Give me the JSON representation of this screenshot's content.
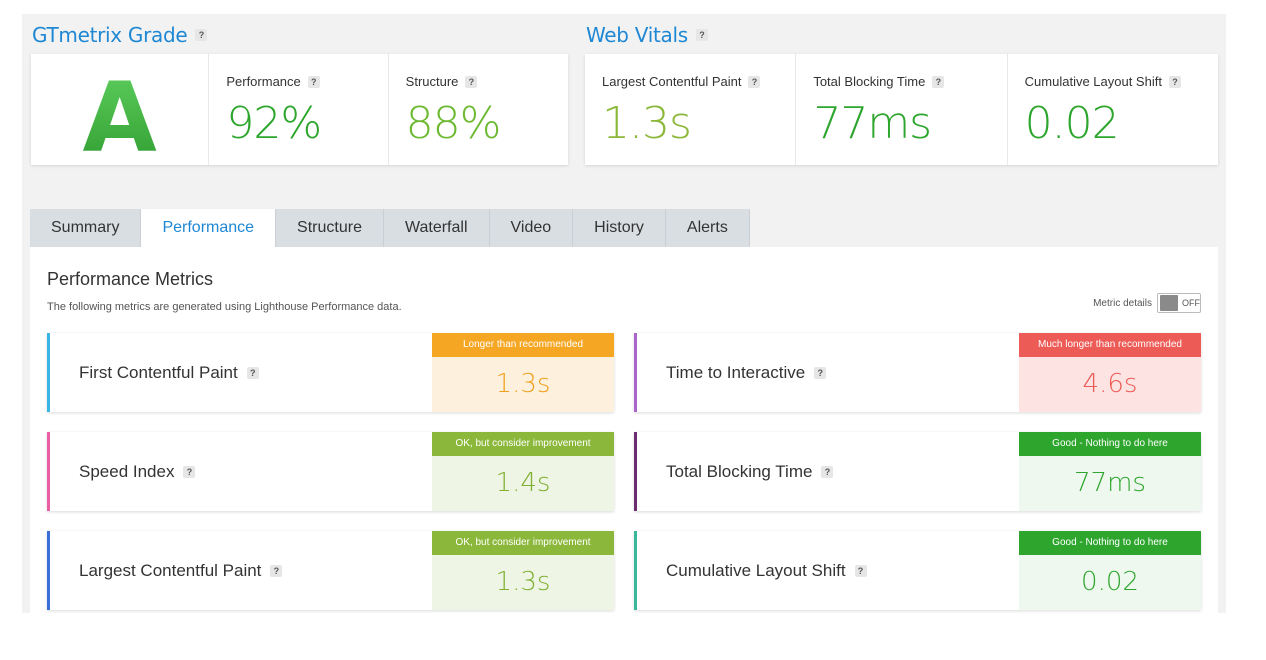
{
  "grade": {
    "title": "GTmetrix Grade",
    "letter": "A",
    "performance_label": "Performance",
    "performance_value": "92%",
    "structure_label": "Structure",
    "structure_value": "88%"
  },
  "vitals": {
    "title": "Web Vitals",
    "lcp_label": "Largest Contentful Paint",
    "lcp_value": "1.3s",
    "tbt_label": "Total Blocking Time",
    "tbt_value": "77ms",
    "cls_label": "Cumulative Layout Shift",
    "cls_value": "0.02"
  },
  "help_glyph": "?",
  "tabs": [
    {
      "label": "Summary"
    },
    {
      "label": "Performance"
    },
    {
      "label": "Structure"
    },
    {
      "label": "Waterfall"
    },
    {
      "label": "Video"
    },
    {
      "label": "History"
    },
    {
      "label": "Alerts"
    }
  ],
  "panel": {
    "title": "Performance Metrics",
    "subtitle": "The following metrics are generated using Lighthouse Performance data.",
    "toggle_label": "Metric details",
    "toggle_state": "OFF"
  },
  "metrics": [
    {
      "name": "First Contentful Paint",
      "badge": "Longer than recommended",
      "value": "1.3s"
    },
    {
      "name": "Time to Interactive",
      "badge": "Much longer than recommended",
      "value": "4.6s"
    },
    {
      "name": "Speed Index",
      "badge": "OK, but consider improvement",
      "value": "1.4s"
    },
    {
      "name": "Total Blocking Time",
      "badge": "Good - Nothing to do here",
      "value": "77ms"
    },
    {
      "name": "Largest Contentful Paint",
      "badge": "OK, but consider improvement",
      "value": "1.3s"
    },
    {
      "name": "Cumulative Layout Shift",
      "badge": "Good - Nothing to do here",
      "value": "0.02"
    }
  ],
  "colors": {
    "accent": "#1e88d4",
    "good_green": "#2ea62e",
    "ok_green": "#8bb83a",
    "warn_orange": "#f5a623",
    "bad_red": "#ec5b56"
  }
}
